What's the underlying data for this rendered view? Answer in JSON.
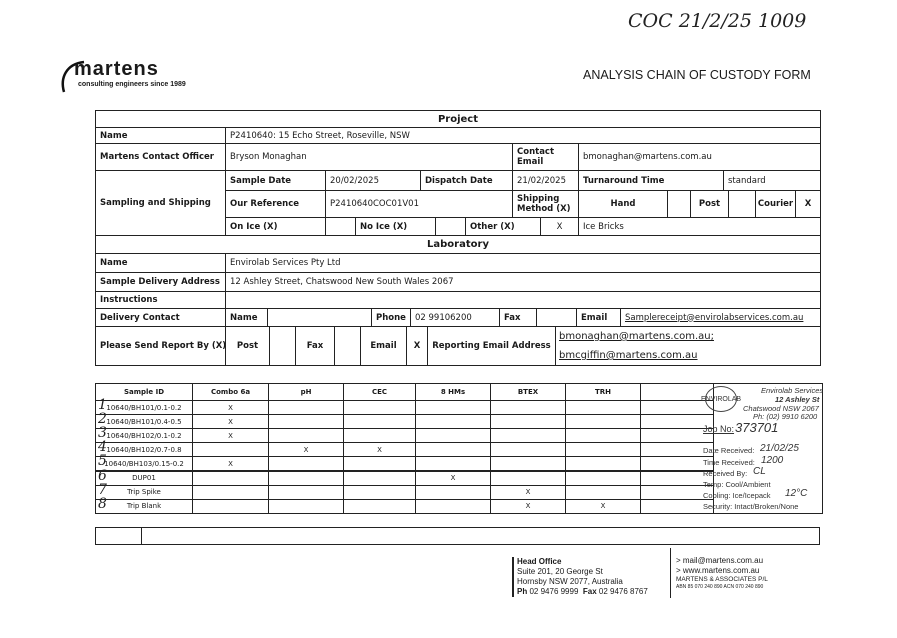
{
  "header": {
    "handwritten_note": "COC 21/2/25 1009",
    "logo_name": "martens",
    "logo_tagline": "consulting engineers since 1989",
    "title": "ANALYSIS CHAIN OF CUSTODY FORM"
  },
  "project": {
    "heading": "Project",
    "name_label": "Name",
    "name": "P2410640: 15 Echo Street, Roseville, NSW",
    "contact_officer_label": "Martens Contact Officer",
    "contact_officer": "Bryson Monaghan",
    "contact_email_label": "Contact Email",
    "contact_email": "bmonaghan@martens.com.au",
    "sampling_label": "Sampling and Shipping",
    "sample_date_label": "Sample Date",
    "sample_date": "20/02/2025",
    "dispatch_date_label": "Dispatch Date",
    "dispatch_date": "21/02/2025",
    "turnaround_label": "Turnaround Time",
    "turnaround": "standard",
    "our_reference_label": "Our Reference",
    "our_reference": "P2410640COC01V01",
    "shipping_method_label": "Shipping Method (X)",
    "hand_label": "Hand",
    "post_label": "Post",
    "courier_label": "Courier",
    "courier": "X",
    "on_ice_label": "On Ice (X)",
    "no_ice_label": "No Ice (X)",
    "other_label": "Other (X)",
    "other": "X",
    "other_detail": "Ice Bricks"
  },
  "laboratory": {
    "heading": "Laboratory",
    "name_label": "Name",
    "name": "Envirolab Services Pty Ltd",
    "address_label": "Sample Delivery Address",
    "address": "12 Ashley Street, Chatswood New South Wales 2067",
    "instructions_label": "Instructions",
    "delivery_contact_label": "Delivery Contact",
    "contact_name_label": "Name",
    "phone_label": "Phone",
    "phone": "02 99106200",
    "fax_label": "Fax",
    "email_label": "Email",
    "email": "Samplereceipt@envirolabservices.com.au",
    "report_label": "Please Send Report By (X)",
    "report_post_label": "Post",
    "report_fax_label": "Fax",
    "report_email_label": "Email",
    "report_email": "X",
    "reporting_email_label": "Reporting Email Address",
    "reporting_emails": [
      "bmonaghan@martens.com.au;",
      "bmcgiffin@martens.com.au"
    ]
  },
  "samples": {
    "columns": [
      "Sample ID",
      "Combo 6a",
      "pH",
      "CEC",
      "8 HMs",
      "BTEX",
      "TRH",
      ""
    ],
    "rows": [
      {
        "num": "1",
        "id": "10640/BH101/0.1-0.2",
        "marks": [
          "X",
          "",
          "",
          "",
          "",
          "",
          ""
        ]
      },
      {
        "num": "2",
        "id": "10640/BH101/0.4-0.5",
        "marks": [
          "X",
          "",
          "",
          "",
          "",
          "",
          ""
        ]
      },
      {
        "num": "3",
        "id": "10640/BH102/0.1-0.2",
        "marks": [
          "X",
          "",
          "",
          "",
          "",
          "",
          ""
        ]
      },
      {
        "num": "4",
        "id": "10640/BH102/0.7-0.8",
        "marks": [
          "",
          "X",
          "X",
          "",
          "",
          "",
          ""
        ]
      },
      {
        "num": "5",
        "id": "10640/BH103/0.15-0.2",
        "marks": [
          "X",
          "",
          "",
          "",
          "",
          "",
          ""
        ]
      },
      {
        "num": "6",
        "id": "DUP01",
        "marks": [
          "",
          "",
          "",
          "X",
          "",
          "",
          ""
        ]
      },
      {
        "num": "7",
        "id": "Trip Spike",
        "marks": [
          "",
          "",
          "",
          "",
          "X",
          "",
          ""
        ]
      },
      {
        "num": "8",
        "id": "Trip Blank",
        "marks": [
          "",
          "",
          "",
          "",
          "X",
          "X",
          ""
        ]
      }
    ],
    "stamp": {
      "logo": "ENVIROLAB",
      "lab_name": "Envirolab Services",
      "street": "12 Ashley St",
      "suburb": "Chatswood NSW 2067",
      "phone": "Ph: (02) 9910 6200",
      "job_label": "Job No:",
      "job_no": "373701",
      "date_label": "Date Received:",
      "date": "21/02/25",
      "time_label": "Time Received:",
      "time": "1200",
      "received_by_label": "Received By:",
      "received_by": "CL",
      "temp": "Temp: Cool/Ambient",
      "cooling_label": "Cooling: Ice/Icepack",
      "cooling_temp": "12°C",
      "security": "Security: Intact/Broken/None"
    }
  },
  "footer": {
    "office_heading": "Head Office",
    "office_lines": [
      "Suite 201, 20 George St",
      "Hornsby NSW 2077, Australia"
    ],
    "ph_label": "Ph",
    "ph": "02 9476 9999",
    "fax_label": "Fax",
    "fax": "02 9476 8767",
    "mail": "> mail@martens.com.au",
    "web": "> www.martens.com.au",
    "company": "MARTENS & ASSOCIATES P/L",
    "abn": "ABN 85 070 240 890   ACN 070 240 890"
  }
}
